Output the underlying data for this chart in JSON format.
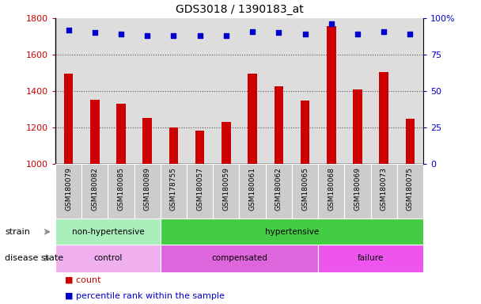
{
  "title": "GDS3018 / 1390183_at",
  "samples": [
    "GSM180079",
    "GSM180082",
    "GSM180085",
    "GSM180089",
    "GSM178755",
    "GSM180057",
    "GSM180059",
    "GSM180061",
    "GSM180062",
    "GSM180065",
    "GSM180068",
    "GSM180069",
    "GSM180073",
    "GSM180075"
  ],
  "counts": [
    1495,
    1355,
    1330,
    1252,
    1202,
    1183,
    1232,
    1495,
    1425,
    1350,
    1755,
    1410,
    1505,
    1248
  ],
  "percentile_ranks": [
    92,
    90,
    89,
    88,
    88,
    88,
    88,
    91,
    90,
    89,
    96,
    89,
    91,
    89
  ],
  "ylim_left": [
    1000,
    1800
  ],
  "ylim_right": [
    0,
    100
  ],
  "yticks_left": [
    1000,
    1200,
    1400,
    1600,
    1800
  ],
  "yticks_right": [
    0,
    25,
    50,
    75,
    100
  ],
  "bar_color": "#cc0000",
  "dot_color": "#0000cc",
  "strain_groups": [
    {
      "label": "non-hypertensive",
      "start": 0,
      "end": 4,
      "color": "#aaeebb"
    },
    {
      "label": "hypertensive",
      "start": 4,
      "end": 14,
      "color": "#44cc44"
    }
  ],
  "disease_groups": [
    {
      "label": "control",
      "start": 0,
      "end": 4,
      "color": "#f0b0f0"
    },
    {
      "label": "compensated",
      "start": 4,
      "end": 10,
      "color": "#dd66dd"
    },
    {
      "label": "failure",
      "start": 10,
      "end": 14,
      "color": "#ee55ee"
    }
  ],
  "legend_count_label": "count",
  "legend_percentile_label": "percentile rank within the sample",
  "tick_label_color_left": "#cc0000",
  "tick_label_color_right": "#0000cc",
  "background_color": "#ffffff",
  "plot_bg_color": "#dddddd",
  "xtick_bg_color": "#cccccc",
  "dotted_line_color": "#555555"
}
